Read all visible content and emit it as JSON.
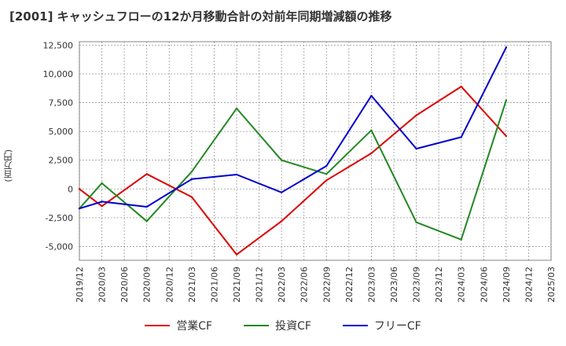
{
  "chart_data": {
    "type": "line",
    "title": "[2001]  キャッシュフローの12か月移動合計の対前年同期増減額の推移",
    "ylabel": "(百万円)",
    "xlabel": "",
    "categories": [
      "2019/12",
      "2020/03",
      "2020/06",
      "2020/09",
      "2020/12",
      "2021/03",
      "2021/06",
      "2021/09",
      "2021/12",
      "2022/03",
      "2022/06",
      "2022/09",
      "2022/12",
      "2023/03",
      "2023/06",
      "2023/09",
      "2023/12",
      "2024/03",
      "2024/06",
      "2024/09",
      "2024/12",
      "2025/03"
    ],
    "yticks": [
      "12,500",
      "10,000",
      "7,500",
      "5,000",
      "2,500",
      "0",
      "-2,500",
      "-5,000"
    ],
    "ylim": [
      -6200,
      12800
    ],
    "grid": true,
    "legend_position": "bottom",
    "series": [
      {
        "name": "営業CF",
        "color": "#dd0000",
        "values": [
          0,
          -1500,
          null,
          1300,
          null,
          -700,
          null,
          -5700,
          null,
          -2800,
          null,
          750,
          null,
          3100,
          null,
          6400,
          null,
          8900,
          null,
          4600,
          null,
          null
        ]
      },
      {
        "name": "投資CF",
        "color": "#228822",
        "values": [
          -1700,
          500,
          null,
          -2800,
          null,
          1500,
          null,
          7000,
          null,
          2500,
          null,
          1300,
          null,
          5100,
          null,
          -2900,
          null,
          -4400,
          null,
          7700,
          null,
          null
        ]
      },
      {
        "name": "フリーCF",
        "color": "#0000cc",
        "values": [
          -1700,
          -1100,
          null,
          -1550,
          null,
          850,
          null,
          1250,
          null,
          -300,
          null,
          2000,
          null,
          8100,
          null,
          3500,
          null,
          4500,
          null,
          12300,
          null,
          null
        ]
      }
    ]
  }
}
